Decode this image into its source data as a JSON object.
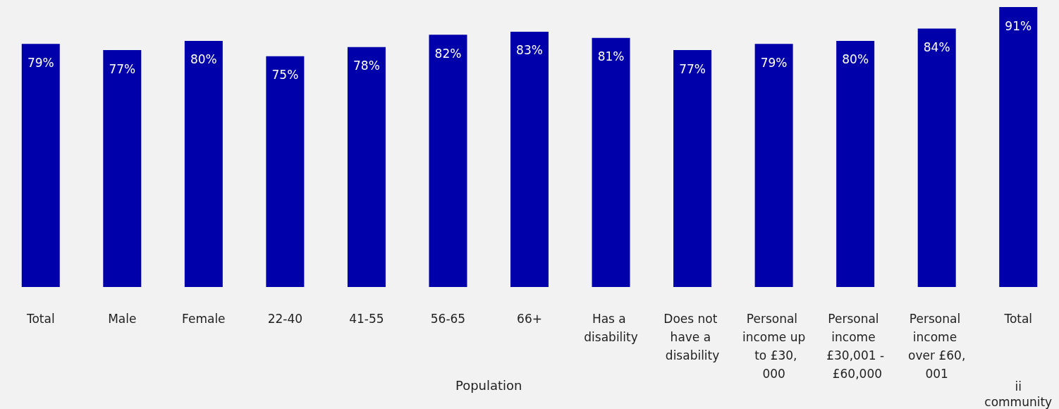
{
  "chart_data": {
    "type": "bar",
    "categories": [
      "Total",
      "Male",
      "Female",
      "22-40",
      "41-55",
      "56-65",
      "66+",
      "Has a disability",
      "Does not have a disability",
      "Personal income up to £30,000",
      "Personal income £30,001 - £60,000",
      "Personal income over £60,001",
      "Total"
    ],
    "color": "#0000aa",
    "values": [
      79,
      77,
      80,
      75,
      78,
      82,
      83,
      81,
      77,
      79,
      80,
      84,
      91
    ],
    "value_labels": [
      "79%",
      "77%",
      "80%",
      "75%",
      "78%",
      "82%",
      "83%",
      "81%",
      "77%",
      "79%",
      "80%",
      "84%",
      "91%"
    ],
    "annotations": [
      "Population",
      "ii\ncommunity"
    ],
    "grid": false
  }
}
